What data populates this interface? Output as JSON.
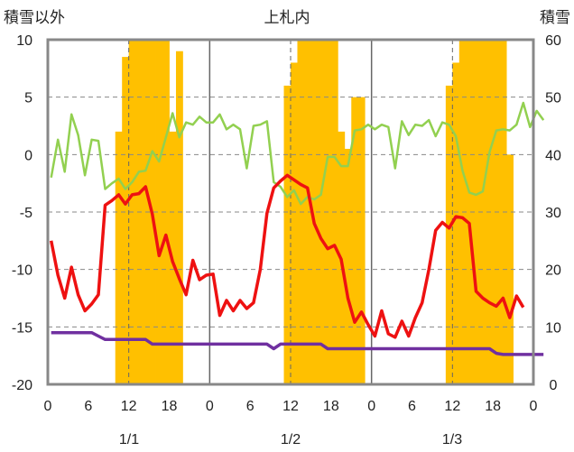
{
  "chart_data": {
    "type": "line+bar",
    "title": "上札内",
    "left_axis_label": "積雪以外",
    "right_axis_label": "積雪",
    "ylim_left": [
      -20,
      10
    ],
    "yticks_left": [
      "10",
      "5",
      "0",
      "-5",
      "-10",
      "-15",
      "-20"
    ],
    "ylim_right": [
      0,
      60
    ],
    "yticks_right": [
      "60",
      "50",
      "40",
      "30",
      "20",
      "10",
      "0"
    ],
    "x_tick_labels": [
      "0",
      "6",
      "12",
      "18",
      "0",
      "6",
      "12",
      "18",
      "0",
      "6",
      "12",
      "18",
      "0"
    ],
    "day_labels": [
      "1/1",
      "1/2",
      "1/3"
    ],
    "x_range_hours": [
      0,
      72
    ],
    "dashed_hours": [
      12,
      36,
      60
    ],
    "solid_hours": [
      24,
      48
    ],
    "colors": {
      "snow": "#ffc000",
      "green": "#92d050",
      "red": "#ee1111",
      "purple": "#7030a0",
      "frame": "#888888"
    },
    "series": [
      {
        "name": "snow_depth",
        "axis": "right",
        "type": "bar",
        "values": [
          0,
          0,
          0,
          0,
          0,
          0,
          0,
          0,
          0,
          0,
          44,
          57,
          60,
          60,
          60,
          60,
          60,
          60,
          44,
          58,
          0,
          0,
          0,
          0,
          0,
          0,
          0,
          0,
          0,
          0,
          0,
          0,
          0,
          0,
          0,
          52,
          56,
          60,
          60,
          60,
          60,
          60,
          60,
          44,
          41,
          50,
          50,
          0,
          0,
          0,
          0,
          0,
          0,
          0,
          0,
          0,
          0,
          0,
          0,
          52,
          56,
          60,
          60,
          60,
          60,
          60,
          60,
          60,
          40,
          0,
          0,
          0
        ]
      },
      {
        "name": "green_series",
        "axis": "left",
        "type": "line",
        "values": [
          -2,
          1.3,
          -1.5,
          3.5,
          1.7,
          -1.8,
          1.3,
          1.2,
          -3,
          -2.5,
          -2.1,
          -3,
          -2.4,
          -1.5,
          -1.4,
          0.3,
          -0.6,
          1.5,
          3.6,
          1.5,
          2.8,
          2.6,
          3.3,
          2.8,
          2.8,
          3.5,
          2.2,
          2.6,
          2.2,
          -1.2,
          2.5,
          2.6,
          2.9,
          -2.4,
          -2.8,
          -3.7,
          -3.1,
          -4.3,
          -3.7,
          -3.9,
          -3.5,
          -0.2,
          -0.2,
          -1,
          -1,
          2.1,
          2.2,
          2.6,
          2.2,
          2.6,
          2.4,
          -1.2,
          2.9,
          1.7,
          2.6,
          2.5,
          3,
          1.6,
          2.8,
          2.6,
          1.6,
          -1.4,
          -3.3,
          -3.5,
          -3.2,
          0.2,
          2.1,
          2.2,
          2.1,
          2.6,
          4.5,
          2.4,
          3.8,
          3.0
        ]
      },
      {
        "name": "red_series",
        "axis": "left",
        "type": "line",
        "values": [
          -7.5,
          -10.5,
          -12.5,
          -9.8,
          -12.2,
          -13.6,
          -13,
          -12.2,
          -4.4,
          -4,
          -3.5,
          -4.3,
          -3.5,
          -3.4,
          -2.8,
          -5.2,
          -8.8,
          -7,
          -9.3,
          -10.8,
          -12.2,
          -9.2,
          -10.9,
          -10.5,
          -10.4,
          -14,
          -12.7,
          -13.6,
          -12.7,
          -13.4,
          -12.9,
          -10,
          -5.1,
          -2.9,
          -2.3,
          -1.8,
          -2.2,
          -2.6,
          -2.9,
          -6,
          -7.3,
          -8.2,
          -7.9,
          -9.1,
          -12.5,
          -14.6,
          -13.7,
          -14.8,
          -15.8,
          -13.6,
          -15.6,
          -15.9,
          -14.5,
          -15.8,
          -14.2,
          -12.9,
          -10,
          -6.6,
          -5.9,
          -6.4,
          -5.4,
          -5.5,
          -6,
          -11.9,
          -12.5,
          -12.9,
          -13.2,
          -12.5,
          -14.2,
          -12.3,
          -13.3
        ]
      },
      {
        "name": "purple_series",
        "axis": "left",
        "type": "line",
        "values": [
          -15.5,
          -15.5,
          -15.5,
          -15.5,
          -15.5,
          -15.5,
          -15.5,
          -15.8,
          -16.1,
          -16.1,
          -16.1,
          -16.1,
          -16.1,
          -16.1,
          -16.1,
          -16.5,
          -16.5,
          -16.5,
          -16.5,
          -16.5,
          -16.5,
          -16.5,
          -16.5,
          -16.5,
          -16.5,
          -16.5,
          -16.5,
          -16.5,
          -16.5,
          -16.5,
          -16.5,
          -16.5,
          -16.5,
          -16.9,
          -16.5,
          -16.5,
          -16.5,
          -16.5,
          -16.5,
          -16.5,
          -16.5,
          -16.9,
          -16.9,
          -16.9,
          -16.9,
          -16.9,
          -16.9,
          -16.9,
          -16.9,
          -16.9,
          -16.9,
          -16.9,
          -16.9,
          -16.9,
          -16.9,
          -16.9,
          -16.9,
          -16.9,
          -16.9,
          -16.9,
          -16.9,
          -16.9,
          -16.9,
          -16.9,
          -16.9,
          -16.9,
          -17.3,
          -17.4,
          -17.4,
          -17.4,
          -17.4,
          -17.4,
          -17.4,
          -17.4
        ]
      }
    ]
  }
}
